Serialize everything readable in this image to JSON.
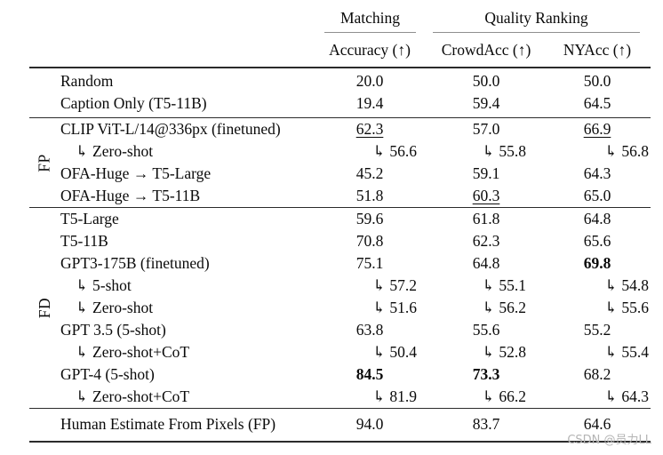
{
  "watermark": "CSDN @员力LL",
  "colors": {
    "rule_heavy": "#2b2b2b",
    "rule_light": "#8f8f8f",
    "text": "#0a0a0a",
    "watermark_gray": "#b5b5b5"
  },
  "header": {
    "groups": [
      {
        "label": "Matching"
      },
      {
        "label": "Quality Ranking"
      }
    ],
    "columns": [
      "Accuracy (↑)",
      "CrowdAcc (↑)",
      "NYAcc (↑)"
    ]
  },
  "sections": [
    {
      "group": "",
      "rows": [
        {
          "label": "Random",
          "sub": false,
          "values": [
            {
              "t": "20.0"
            },
            {
              "t": "50.0"
            },
            {
              "t": "50.0"
            }
          ]
        },
        {
          "label": "Caption Only (T5-11B)",
          "sub": false,
          "values": [
            {
              "t": "19.4"
            },
            {
              "t": "59.4"
            },
            {
              "t": "64.5"
            }
          ]
        }
      ]
    },
    {
      "group": "FP",
      "rows": [
        {
          "label": "CLIP ViT-L/14@336px (finetuned)",
          "sub": false,
          "values": [
            {
              "t": "62.3",
              "u": true
            },
            {
              "t": "57.0"
            },
            {
              "t": "66.9",
              "u": true
            }
          ]
        },
        {
          "label": "↳ Zero-shot",
          "sub": true,
          "values": [
            {
              "t": "↳ 56.6"
            },
            {
              "t": "↳ 55.8"
            },
            {
              "t": "↳ 56.8"
            }
          ]
        },
        {
          "label": "OFA-Huge → T5-Large",
          "sub": false,
          "values": [
            {
              "t": "45.2"
            },
            {
              "t": "59.1"
            },
            {
              "t": "64.3"
            }
          ]
        },
        {
          "label": "OFA-Huge → T5-11B",
          "sub": false,
          "values": [
            {
              "t": "51.8"
            },
            {
              "t": "60.3",
              "u": true
            },
            {
              "t": "65.0"
            }
          ]
        }
      ]
    },
    {
      "group": "FD",
      "rows": [
        {
          "label": "T5-Large",
          "sub": false,
          "values": [
            {
              "t": "59.6"
            },
            {
              "t": "61.8"
            },
            {
              "t": "64.8"
            }
          ]
        },
        {
          "label": "T5-11B",
          "sub": false,
          "values": [
            {
              "t": "70.8"
            },
            {
              "t": "62.3"
            },
            {
              "t": "65.6"
            }
          ]
        },
        {
          "label": "GPT3-175B (finetuned)",
          "sub": false,
          "values": [
            {
              "t": "75.1"
            },
            {
              "t": "64.8"
            },
            {
              "t": "69.8",
              "b": true
            }
          ]
        },
        {
          "label": "↳ 5-shot",
          "sub": true,
          "values": [
            {
              "t": "↳ 57.2"
            },
            {
              "t": "↳ 55.1"
            },
            {
              "t": "↳ 54.8"
            }
          ]
        },
        {
          "label": "↳ Zero-shot",
          "sub": true,
          "values": [
            {
              "t": "↳ 51.6"
            },
            {
              "t": "↳ 56.2"
            },
            {
              "t": "↳ 55.6"
            }
          ]
        },
        {
          "label": "GPT 3.5 (5-shot)",
          "sub": false,
          "values": [
            {
              "t": "63.8"
            },
            {
              "t": "55.6"
            },
            {
              "t": "55.2"
            }
          ]
        },
        {
          "label": "↳ Zero-shot+CoT",
          "sub": true,
          "values": [
            {
              "t": "↳ 50.4"
            },
            {
              "t": "↳ 52.8"
            },
            {
              "t": "↳ 55.4"
            }
          ]
        },
        {
          "label": "GPT-4 (5-shot)",
          "sub": false,
          "values": [
            {
              "t": "84.5",
              "b": true
            },
            {
              "t": "73.3",
              "b": true
            },
            {
              "t": "68.2"
            }
          ]
        },
        {
          "label": "↳ Zero-shot+CoT",
          "sub": true,
          "values": [
            {
              "t": "↳ 81.9"
            },
            {
              "t": "↳ 66.2"
            },
            {
              "t": "↳ 64.3"
            }
          ]
        }
      ]
    },
    {
      "group": "",
      "rows": [
        {
          "label": "Human Estimate From Pixels (FP)",
          "sub": false,
          "values": [
            {
              "t": "94.0"
            },
            {
              "t": "83.7"
            },
            {
              "t": "64.6"
            }
          ]
        }
      ]
    }
  ]
}
